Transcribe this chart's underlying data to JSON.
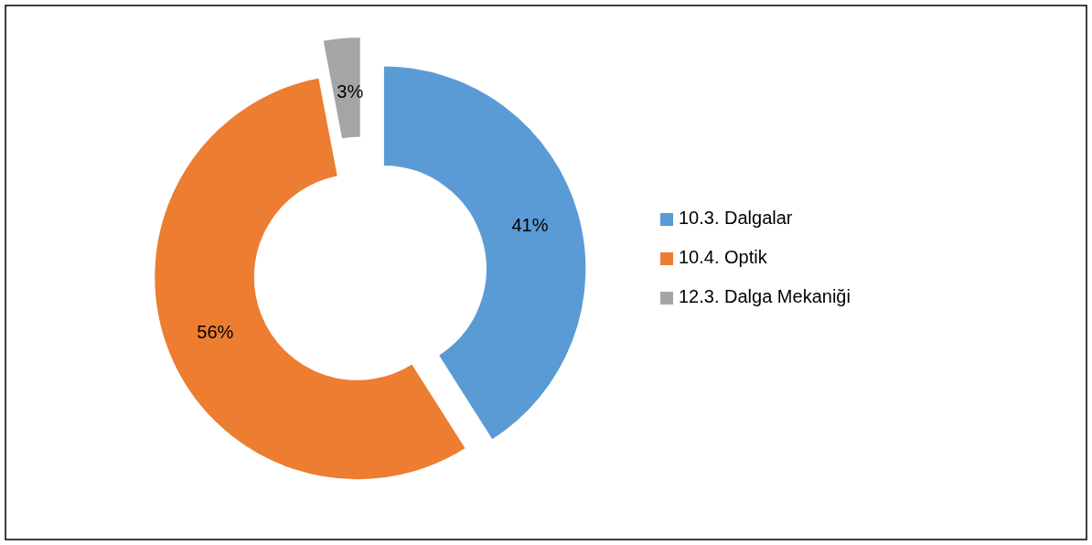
{
  "chart_data": {
    "type": "donut",
    "categories": [
      "10.3. Dalgalar",
      "10.4. Optik",
      "12.3. Dalga Mekaniği"
    ],
    "values": [
      41,
      56,
      3
    ],
    "colors": [
      "#5b9bd5",
      "#ed7d31",
      "#a5a5a5"
    ],
    "value_labels": [
      "41%",
      "56%",
      "3%"
    ],
    "legend": "right"
  }
}
